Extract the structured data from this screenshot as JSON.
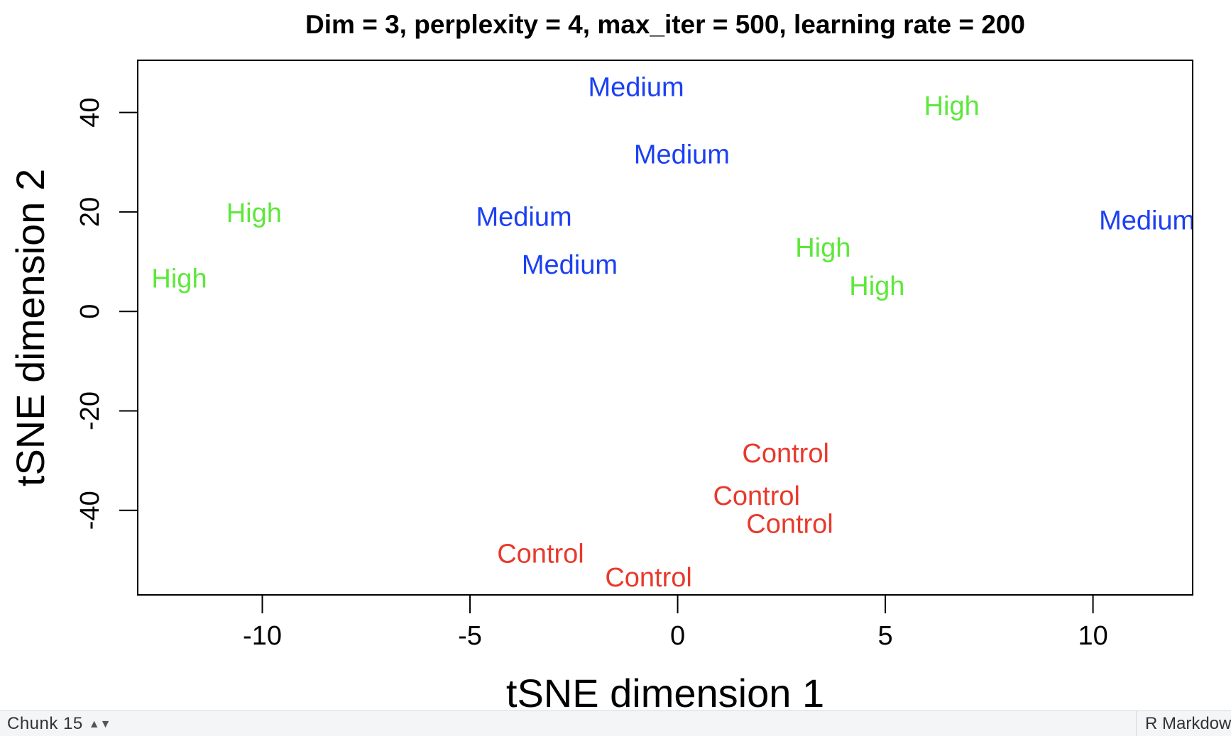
{
  "chart_data": {
    "type": "scatter",
    "title": "Dim = 3, perplexity = 4, max_iter = 500, learning rate = 200",
    "xlabel": "tSNE dimension 1",
    "ylabel": "tSNE dimension 2",
    "xlim": [
      -13,
      12.4
    ],
    "ylim": [
      -57,
      50.5
    ],
    "xticks": [
      -10,
      -5,
      0,
      5,
      10
    ],
    "xtick_labels": [
      "-10",
      "-5",
      "0",
      "5",
      "10"
    ],
    "yticks": [
      -40,
      -20,
      0,
      20,
      40
    ],
    "ytick_labels": [
      "-40",
      "-20",
      "0",
      "20",
      "40"
    ],
    "grid": false,
    "marker": "text-label",
    "colors": {
      "Control": "#e8392b",
      "Medium": "#1c40f2",
      "High": "#5ce83a"
    },
    "points": [
      {
        "label": "Medium",
        "x": -1.0,
        "y": 45.0
      },
      {
        "label": "High",
        "x": 6.6,
        "y": 41.2
      },
      {
        "label": "Medium",
        "x": 0.1,
        "y": 31.5
      },
      {
        "label": "High",
        "x": -10.2,
        "y": 19.7
      },
      {
        "label": "Medium",
        "x": -3.7,
        "y": 18.9
      },
      {
        "label": "Medium",
        "x": 11.3,
        "y": 18.2
      },
      {
        "label": "High",
        "x": 3.5,
        "y": 12.7
      },
      {
        "label": "Medium",
        "x": -2.6,
        "y": 9.3
      },
      {
        "label": "High",
        "x": -12.0,
        "y": 6.5
      },
      {
        "label": "High",
        "x": 4.8,
        "y": 5.0
      },
      {
        "label": "Control",
        "x": 2.6,
        "y": -28.6
      },
      {
        "label": "Control",
        "x": 1.9,
        "y": -37.2
      },
      {
        "label": "Control",
        "x": 2.7,
        "y": -42.8
      },
      {
        "label": "Control",
        "x": -3.3,
        "y": -48.8
      },
      {
        "label": "Control",
        "x": -0.7,
        "y": -53.6
      }
    ]
  },
  "status_bar": {
    "chunk_label": "Chunk 15",
    "chunk_icon": "up-down-arrows-icon",
    "doc_type": "R Markdown"
  }
}
